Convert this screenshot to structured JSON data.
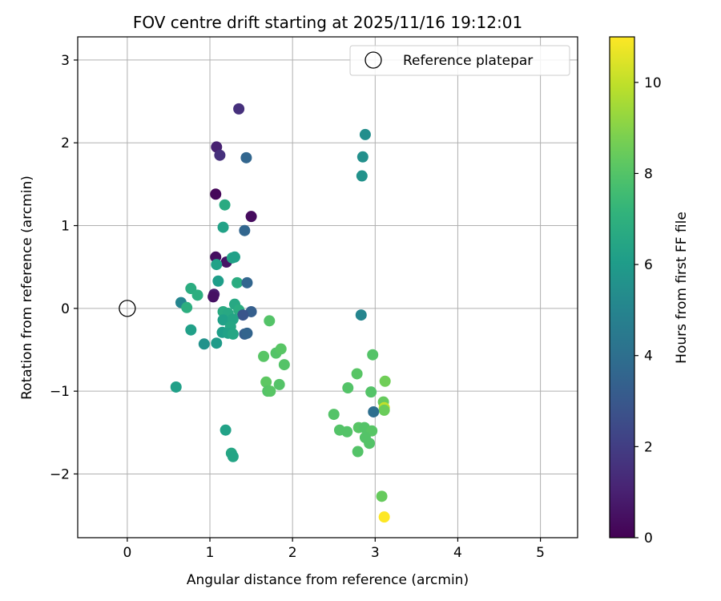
{
  "chart_data": {
    "type": "scatter",
    "title": "FOV centre drift starting at 2025/11/16 19:12:01",
    "xlabel": "Angular distance from reference (arcmin)",
    "ylabel": "Rotation from reference (arcmin)",
    "xlim": [
      -0.6,
      5.45
    ],
    "ylim": [
      -2.77,
      3.28
    ],
    "xticks": [
      0,
      1,
      2,
      3,
      4,
      5
    ],
    "yticks": [
      -2,
      -1,
      0,
      1,
      2,
      3
    ],
    "grid": true,
    "legend": {
      "position": "top-right",
      "entries": [
        "Reference platepar"
      ]
    },
    "reference_point": {
      "x": 0,
      "y": 0,
      "label": "Reference platepar"
    },
    "colorbar": {
      "label": "Hours from first FF file",
      "range": [
        0,
        11
      ],
      "ticks": [
        0,
        2,
        4,
        6,
        8,
        10
      ],
      "colormap": "viridis"
    },
    "points": [
      {
        "x": 1.35,
        "y": 2.41,
        "h": 1.5
      },
      {
        "x": 1.08,
        "y": 1.95,
        "h": 1.0
      },
      {
        "x": 1.12,
        "y": 1.85,
        "h": 1.5
      },
      {
        "x": 1.44,
        "y": 1.82,
        "h": 3.6
      },
      {
        "x": 1.07,
        "y": 1.38,
        "h": 0.2
      },
      {
        "x": 1.5,
        "y": 1.11,
        "h": 0.3
      },
      {
        "x": 1.18,
        "y": 1.25,
        "h": 6.7
      },
      {
        "x": 1.16,
        "y": 0.98,
        "h": 6.3
      },
      {
        "x": 1.42,
        "y": 0.94,
        "h": 3.6
      },
      {
        "x": 1.07,
        "y": 0.62,
        "h": 0.4
      },
      {
        "x": 1.2,
        "y": 0.56,
        "h": 0.6
      },
      {
        "x": 1.27,
        "y": 0.61,
        "h": 6.4
      },
      {
        "x": 1.3,
        "y": 0.62,
        "h": 6.2
      },
      {
        "x": 1.08,
        "y": 0.53,
        "h": 6.3
      },
      {
        "x": 1.1,
        "y": 0.33,
        "h": 6.1
      },
      {
        "x": 1.33,
        "y": 0.31,
        "h": 6.8
      },
      {
        "x": 1.45,
        "y": 0.31,
        "h": 3.6
      },
      {
        "x": 1.05,
        "y": 0.17,
        "h": 0.8
      },
      {
        "x": 1.04,
        "y": 0.14,
        "h": 0.5
      },
      {
        "x": 0.77,
        "y": 0.24,
        "h": 6.8
      },
      {
        "x": 0.85,
        "y": 0.16,
        "h": 6.9
      },
      {
        "x": 0.65,
        "y": 0.07,
        "h": 5.0
      },
      {
        "x": 0.72,
        "y": 0.01,
        "h": 6.9
      },
      {
        "x": 1.3,
        "y": 0.05,
        "h": 6.6
      },
      {
        "x": 1.5,
        "y": -0.04,
        "h": 3.3
      },
      {
        "x": 1.16,
        "y": -0.04,
        "h": 6.7
      },
      {
        "x": 1.22,
        "y": -0.06,
        "h": 6.6
      },
      {
        "x": 1.35,
        "y": -0.02,
        "h": 6.8
      },
      {
        "x": 1.4,
        "y": -0.08,
        "h": 2.9
      },
      {
        "x": 1.16,
        "y": -0.14,
        "h": 6.2
      },
      {
        "x": 1.28,
        "y": -0.13,
        "h": 6.4
      },
      {
        "x": 1.25,
        "y": -0.22,
        "h": 6.5
      },
      {
        "x": 0.77,
        "y": -0.26,
        "h": 6.2
      },
      {
        "x": 1.15,
        "y": -0.29,
        "h": 6.1
      },
      {
        "x": 1.22,
        "y": -0.3,
        "h": 6.3
      },
      {
        "x": 1.28,
        "y": -0.31,
        "h": 6.5
      },
      {
        "x": 1.42,
        "y": -0.31,
        "h": 3.3
      },
      {
        "x": 1.45,
        "y": -0.3,
        "h": 3.5
      },
      {
        "x": 0.93,
        "y": -0.43,
        "h": 5.6
      },
      {
        "x": 1.08,
        "y": -0.42,
        "h": 6.0
      },
      {
        "x": 1.72,
        "y": -0.15,
        "h": 8.0
      },
      {
        "x": 1.65,
        "y": -0.58,
        "h": 8.1
      },
      {
        "x": 1.8,
        "y": -0.54,
        "h": 8.0
      },
      {
        "x": 1.86,
        "y": -0.49,
        "h": 8.1
      },
      {
        "x": 1.9,
        "y": -0.68,
        "h": 8.0
      },
      {
        "x": 1.68,
        "y": -0.89,
        "h": 8.2
      },
      {
        "x": 1.7,
        "y": -1.0,
        "h": 8.0
      },
      {
        "x": 1.73,
        "y": -1.0,
        "h": 8.1
      },
      {
        "x": 1.84,
        "y": -0.92,
        "h": 8.0
      },
      {
        "x": 0.59,
        "y": -0.95,
        "h": 6.2
      },
      {
        "x": 1.19,
        "y": -1.47,
        "h": 6.3
      },
      {
        "x": 1.26,
        "y": -1.75,
        "h": 6.5
      },
      {
        "x": 1.28,
        "y": -1.79,
        "h": 6.4
      },
      {
        "x": 2.88,
        "y": 2.1,
        "h": 5.4
      },
      {
        "x": 2.85,
        "y": 1.83,
        "h": 5.5
      },
      {
        "x": 2.84,
        "y": 1.6,
        "h": 5.6
      },
      {
        "x": 2.83,
        "y": -0.08,
        "h": 5.0
      },
      {
        "x": 2.97,
        "y": -0.56,
        "h": 8.0
      },
      {
        "x": 2.78,
        "y": -0.79,
        "h": 8.1
      },
      {
        "x": 3.12,
        "y": -0.88,
        "h": 8.6
      },
      {
        "x": 2.67,
        "y": -0.96,
        "h": 8.0
      },
      {
        "x": 2.95,
        "y": -1.01,
        "h": 8.0
      },
      {
        "x": 3.1,
        "y": -1.13,
        "h": 8.4
      },
      {
        "x": 3.11,
        "y": -1.2,
        "h": 10.0
      },
      {
        "x": 3.11,
        "y": -1.23,
        "h": 8.5
      },
      {
        "x": 2.98,
        "y": -1.25,
        "h": 4.0
      },
      {
        "x": 2.5,
        "y": -1.28,
        "h": 8.0
      },
      {
        "x": 2.57,
        "y": -1.47,
        "h": 8.0
      },
      {
        "x": 2.66,
        "y": -1.49,
        "h": 8.0
      },
      {
        "x": 2.8,
        "y": -1.44,
        "h": 8.1
      },
      {
        "x": 2.87,
        "y": -1.44,
        "h": 8.0
      },
      {
        "x": 2.96,
        "y": -1.48,
        "h": 8.1
      },
      {
        "x": 2.88,
        "y": -1.56,
        "h": 8.0
      },
      {
        "x": 2.93,
        "y": -1.63,
        "h": 8.0
      },
      {
        "x": 2.79,
        "y": -1.73,
        "h": 8.0
      },
      {
        "x": 3.08,
        "y": -2.27,
        "h": 8.4
      },
      {
        "x": 3.11,
        "y": -2.52,
        "h": 11.0
      }
    ]
  }
}
